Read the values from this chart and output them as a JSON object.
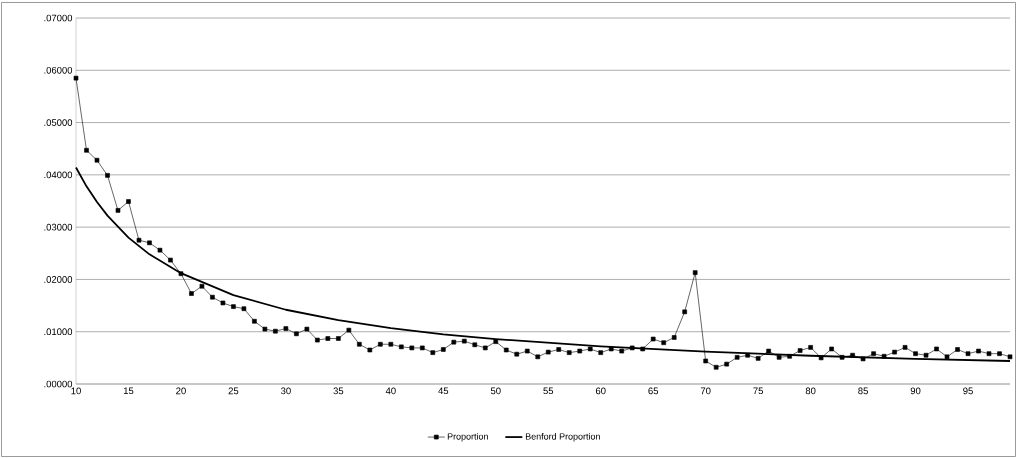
{
  "chart_data": {
    "type": "line",
    "x": [
      10,
      11,
      12,
      13,
      14,
      15,
      16,
      17,
      18,
      19,
      20,
      21,
      22,
      23,
      24,
      25,
      26,
      27,
      28,
      29,
      30,
      31,
      32,
      33,
      34,
      35,
      36,
      37,
      38,
      39,
      40,
      41,
      42,
      43,
      44,
      45,
      46,
      47,
      48,
      49,
      50,
      51,
      52,
      53,
      54,
      55,
      56,
      57,
      58,
      59,
      60,
      61,
      62,
      63,
      64,
      65,
      66,
      67,
      68,
      69,
      70,
      71,
      72,
      73,
      74,
      75,
      76,
      77,
      78,
      79,
      80,
      81,
      82,
      83,
      84,
      85,
      86,
      87,
      88,
      89,
      90,
      91,
      92,
      93,
      94,
      95,
      96,
      97,
      98,
      99
    ],
    "series": [
      {
        "name": "Proportion",
        "color": "#000000",
        "marker": "square",
        "values": [
          0.0585,
          0.0447,
          0.0428,
          0.0399,
          0.0332,
          0.0349,
          0.0275,
          0.027,
          0.0256,
          0.0237,
          0.0211,
          0.0173,
          0.0187,
          0.0166,
          0.0155,
          0.0148,
          0.0144,
          0.012,
          0.0105,
          0.0101,
          0.0106,
          0.0096,
          0.0105,
          0.0084,
          0.0087,
          0.0087,
          0.0103,
          0.0076,
          0.0065,
          0.0076,
          0.0076,
          0.0071,
          0.0069,
          0.0069,
          0.006,
          0.0066,
          0.008,
          0.0082,
          0.0075,
          0.0069,
          0.0081,
          0.0065,
          0.0057,
          0.0063,
          0.0052,
          0.0061,
          0.0066,
          0.006,
          0.0063,
          0.0067,
          0.006,
          0.0067,
          0.0063,
          0.0069,
          0.0067,
          0.0086,
          0.0079,
          0.0089,
          0.0138,
          0.0213,
          0.0044,
          0.0032,
          0.0038,
          0.0051,
          0.0055,
          0.0049,
          0.0063,
          0.0051,
          0.0053,
          0.0064,
          0.007,
          0.005,
          0.0067,
          0.0051,
          0.0055,
          0.0048,
          0.0058,
          0.0053,
          0.0061,
          0.007,
          0.0058,
          0.0055,
          0.0067,
          0.0052,
          0.0066,
          0.0058,
          0.0063,
          0.0058,
          0.0058,
          0.0052
        ]
      },
      {
        "name": "Benford Proportion",
        "color": "#000000",
        "marker": "none",
        "x": [
          10,
          11,
          12,
          13,
          15,
          17,
          20,
          25,
          30,
          35,
          40,
          45,
          50,
          60,
          70,
          80,
          90,
          99
        ],
        "values": [
          0.0414,
          0.0378,
          0.0348,
          0.0322,
          0.028,
          0.0248,
          0.0212,
          0.017,
          0.0142,
          0.0122,
          0.0107,
          0.0095,
          0.0086,
          0.0072,
          0.0062,
          0.0054,
          0.0048,
          0.0044
        ]
      }
    ],
    "xlim": [
      10,
      99
    ],
    "xticks": [
      10,
      15,
      20,
      25,
      30,
      35,
      40,
      45,
      50,
      55,
      60,
      65,
      70,
      75,
      80,
      85,
      90,
      95
    ],
    "ylim": [
      0,
      0.07
    ],
    "yticks": [
      {
        "value": 0,
        "label": ".00000"
      },
      {
        "value": 0.01,
        "label": ".01000"
      },
      {
        "value": 0.02,
        "label": ".02000"
      },
      {
        "value": 0.03,
        "label": ".03000"
      },
      {
        "value": 0.04,
        "label": ".04000"
      },
      {
        "value": 0.05,
        "label": ".05000"
      },
      {
        "value": 0.06,
        "label": ".06000"
      },
      {
        "value": 0.07,
        "label": ".07000"
      }
    ],
    "grid": "y",
    "legend": "bottom"
  }
}
